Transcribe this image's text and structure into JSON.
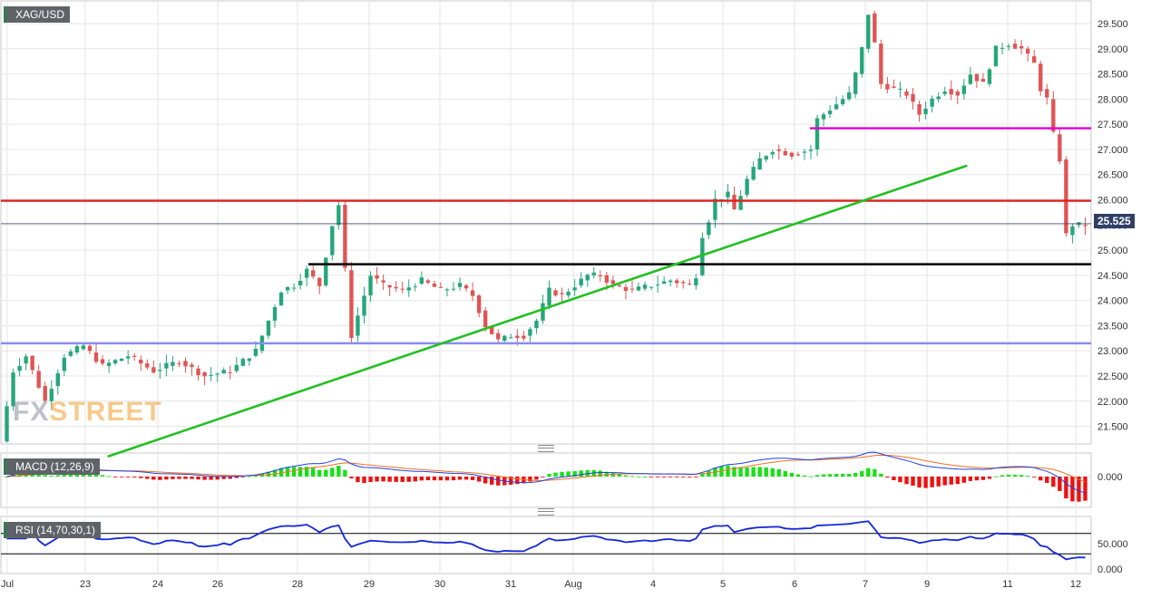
{
  "chart_data": [
    {
      "panel": "price",
      "type": "candlestick",
      "label": "XAG/USD",
      "last_price": "25.525",
      "y_ticks": [
        "29.500",
        "29.000",
        "28.500",
        "28.000",
        "27.500",
        "27.000",
        "26.500",
        "26.000",
        "25.500",
        "25.000",
        "24.500",
        "24.000",
        "23.500",
        "23.000",
        "22.500",
        "22.000",
        "21.500"
      ],
      "ylim": [
        21.15,
        29.95
      ],
      "x_labels": [
        "Jul",
        "23",
        "24",
        "26",
        "28",
        "29",
        "30",
        "31",
        "Aug",
        "4",
        "5",
        "6",
        "7",
        "9",
        "11",
        "12"
      ],
      "horizontal_levels": [
        {
          "name": "resistance",
          "value": 25.98,
          "color": "#e02020"
        },
        {
          "name": "support",
          "value": 24.72,
          "color": "#000000"
        },
        {
          "name": "upper-resistance",
          "value": 27.42,
          "color": "#e000d0"
        },
        {
          "name": "lower-support",
          "value": 23.15,
          "color": "#8a8cf0"
        },
        {
          "name": "last-price-line",
          "value": 25.525,
          "color": "#2f3f66"
        }
      ],
      "trendline": {
        "color": "#22c022",
        "from": {
          "t": 16.3,
          "v": 20.9
        },
        "to": {
          "t": 151,
          "v": 26.68
        }
      },
      "path": [
        [
          0,
          21.2
        ],
        [
          2,
          22.6
        ],
        [
          4,
          22.9
        ],
        [
          7,
          22.0
        ],
        [
          10,
          22.9
        ],
        [
          13,
          23.1
        ],
        [
          16,
          22.7
        ],
        [
          20,
          22.9
        ],
        [
          24,
          22.6
        ],
        [
          28,
          22.8
        ],
        [
          32,
          22.5
        ],
        [
          36,
          22.6
        ],
        [
          40,
          23.0
        ],
        [
          42,
          23.6
        ],
        [
          44,
          24.2
        ],
        [
          46,
          24.3
        ],
        [
          48,
          24.6
        ],
        [
          50,
          24.3
        ],
        [
          51,
          24.9
        ],
        [
          52,
          25.5
        ],
        [
          53,
          25.9
        ],
        [
          54,
          24.6
        ],
        [
          55,
          23.3
        ],
        [
          56,
          23.7
        ],
        [
          58,
          24.5
        ],
        [
          60,
          24.3
        ],
        [
          63,
          24.2
        ],
        [
          66,
          24.4
        ],
        [
          69,
          24.2
        ],
        [
          72,
          24.3
        ],
        [
          74,
          24.1
        ],
        [
          76,
          23.5
        ],
        [
          78,
          23.2
        ],
        [
          80,
          23.3
        ],
        [
          82,
          23.3
        ],
        [
          84,
          23.6
        ],
        [
          86,
          24.2
        ],
        [
          88,
          24.1
        ],
        [
          90,
          24.3
        ],
        [
          92,
          24.5
        ],
        [
          94,
          24.5
        ],
        [
          96,
          24.3
        ],
        [
          99,
          24.2
        ],
        [
          102,
          24.3
        ],
        [
          105,
          24.4
        ],
        [
          108,
          24.3
        ],
        [
          109,
          24.5
        ],
        [
          110,
          25.3
        ],
        [
          111,
          25.6
        ],
        [
          112,
          26.0
        ],
        [
          114,
          26.1
        ],
        [
          115,
          25.8
        ],
        [
          117,
          26.4
        ],
        [
          119,
          26.8
        ],
        [
          121,
          27.0
        ],
        [
          124,
          26.9
        ],
        [
          127,
          27.0
        ],
        [
          128,
          27.6
        ],
        [
          130,
          27.8
        ],
        [
          133,
          28.1
        ],
        [
          134,
          28.5
        ],
        [
          135,
          29.0
        ],
        [
          136,
          29.7
        ],
        [
          137,
          29.1
        ],
        [
          138,
          28.3
        ],
        [
          140,
          28.2
        ],
        [
          142,
          28.1
        ],
        [
          144,
          27.7
        ],
        [
          146,
          28.0
        ],
        [
          148,
          28.2
        ],
        [
          150,
          28.1
        ],
        [
          152,
          28.5
        ],
        [
          154,
          28.3
        ],
        [
          156,
          29.0
        ],
        [
          158,
          29.1
        ],
        [
          160,
          29.0
        ],
        [
          162,
          28.7
        ],
        [
          163,
          28.2
        ],
        [
          164,
          28.0
        ],
        [
          165,
          27.3
        ],
        [
          166,
          26.8
        ],
        [
          167,
          25.3
        ],
        [
          168,
          25.5
        ]
      ],
      "n_candles": 170
    },
    {
      "panel": "macd",
      "type": "macd",
      "label": "MACD (12,26,9)",
      "y_ticks": [
        "0.000"
      ]
    },
    {
      "panel": "rsi",
      "type": "line",
      "label": "RSI (14,70,30,1)",
      "y_ticks": [
        "50.000",
        "0.000"
      ],
      "levels": [
        70,
        30
      ]
    }
  ],
  "watermark": {
    "left": "FX",
    "right": "STREET"
  },
  "colors": {
    "bull": "#26a67a",
    "bear": "#e05454",
    "grid": "#e6e6e6",
    "axis_text": "#333333",
    "macd_line": "#2040e0",
    "signal_line": "#f07020",
    "hist_pos": "#18e018",
    "hist_neg": "#ee1010",
    "rsi_line": "#1428d8"
  }
}
